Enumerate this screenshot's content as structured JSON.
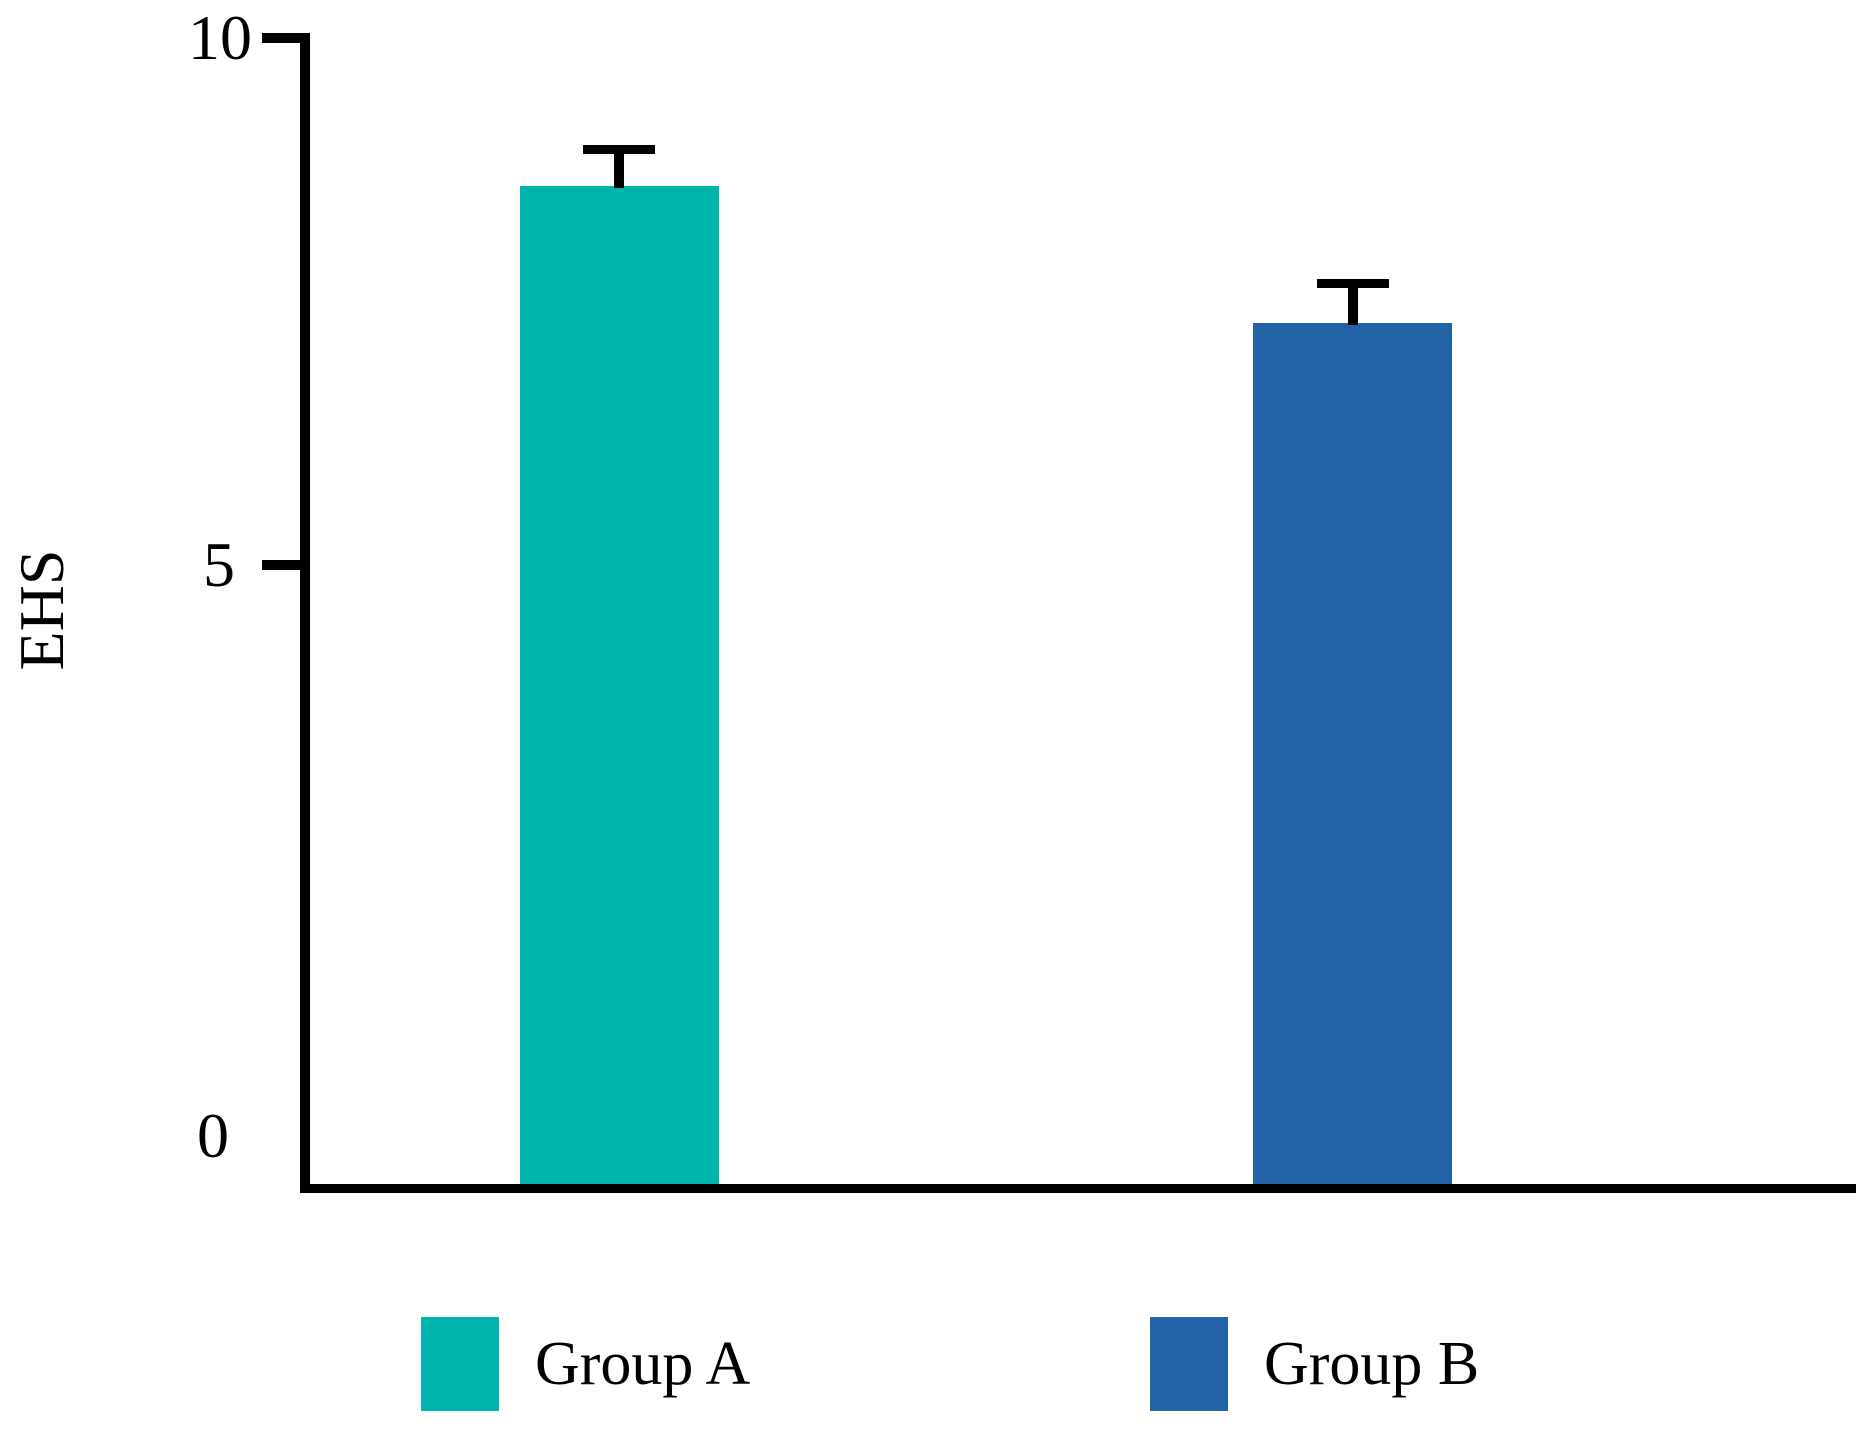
{
  "chart_data": {
    "type": "bar",
    "categories": [
      "Group A",
      "Group B"
    ],
    "values": [
      8.6,
      7.3
    ],
    "errors": [
      0.34,
      0.37
    ],
    "title": "",
    "xlabel": "",
    "ylabel": "EHS",
    "ylim": [
      0,
      10
    ],
    "yticks": [
      0,
      5,
      10
    ],
    "grid": false,
    "legend_position": "bottom",
    "colors": [
      "#00B5AC",
      "#2362A5"
    ],
    "error_bar_color": "#000000",
    "axis_color": "#000000"
  }
}
